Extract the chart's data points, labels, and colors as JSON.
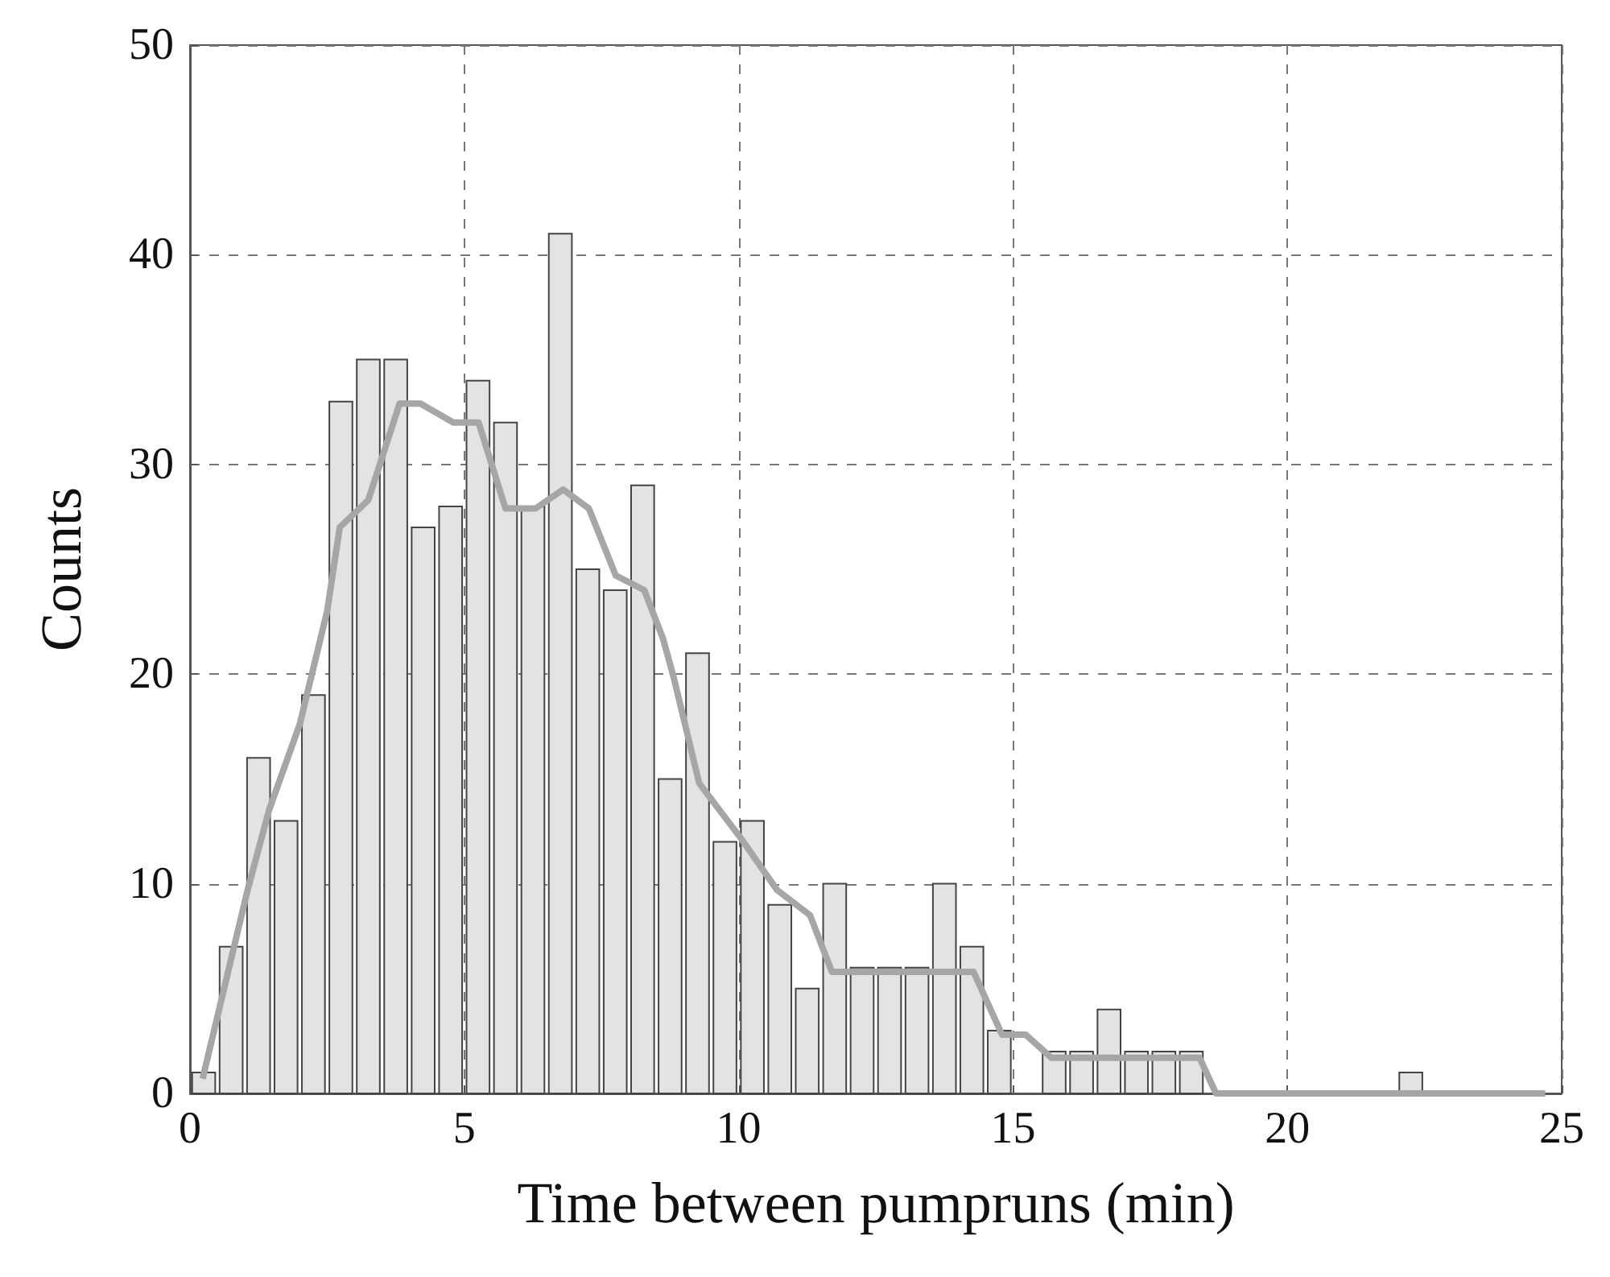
{
  "chart_data": {
    "type": "histogram",
    "xlabel": "Time between pumpruns (min)",
    "ylabel": "Counts",
    "xlim": [
      0,
      25
    ],
    "xticks": [
      0,
      5,
      10,
      15,
      20,
      25
    ],
    "ylim": [
      0,
      50
    ],
    "yticks": [
      0,
      10,
      20,
      30,
      40,
      50
    ],
    "grid": true,
    "marker": "none",
    "series": [
      {
        "color": "#e3e3e3",
        "bins": [
          0,
          0.5,
          1,
          1.5,
          2,
          2.5,
          3,
          3.5,
          4,
          4.5,
          5,
          5.5,
          6,
          6.5,
          7,
          7.5,
          8,
          8.5,
          9,
          9.5,
          10,
          10.5,
          11,
          11.5,
          12,
          12.5,
          13,
          13.5,
          14,
          14.5,
          15,
          15.5,
          16,
          16.5,
          17,
          17.5,
          18,
          18.5,
          19,
          19.5,
          20,
          20.5,
          21,
          21.5,
          22,
          22.5,
          23,
          23.5,
          24,
          24.5,
          25
        ],
        "values": [
          1,
          7,
          16,
          13,
          19,
          33,
          35,
          35,
          27,
          28,
          34,
          32,
          28,
          41,
          25,
          24,
          29,
          15,
          21,
          12,
          13,
          9,
          5,
          10,
          6,
          6,
          6,
          10,
          7,
          3,
          0,
          2,
          2,
          4,
          2,
          2,
          2,
          0,
          0,
          0,
          0,
          0,
          0,
          0,
          1,
          0,
          0,
          0,
          0,
          0
        ]
      },
      {
        "type": "line",
        "color": "#a6a6a6",
        "x": [
          0.23,
          1.05,
          1.44,
          2.0,
          2.5,
          2.73,
          3.25,
          3.82,
          4.2,
          4.8,
          5.26,
          5.75,
          6.3,
          6.8,
          7.27,
          7.76,
          8.28,
          8.62,
          8.82,
          9.28,
          10.06,
          10.7,
          11.3,
          11.7,
          14.28,
          14.8,
          15.23,
          15.7,
          18.4,
          18.7,
          24.7
        ],
        "values": [
          0.7,
          9.7,
          13.5,
          17.6,
          23,
          27,
          28.3,
          32.9,
          32.9,
          32,
          32,
          27.9,
          27.9,
          28.8,
          27.9,
          24.7,
          24,
          21.7,
          19.8,
          14.8,
          12.1,
          9.7,
          8.5,
          5.8,
          5.8,
          2.8,
          2.8,
          1.7,
          1.7,
          0,
          0
        ]
      }
    ]
  }
}
